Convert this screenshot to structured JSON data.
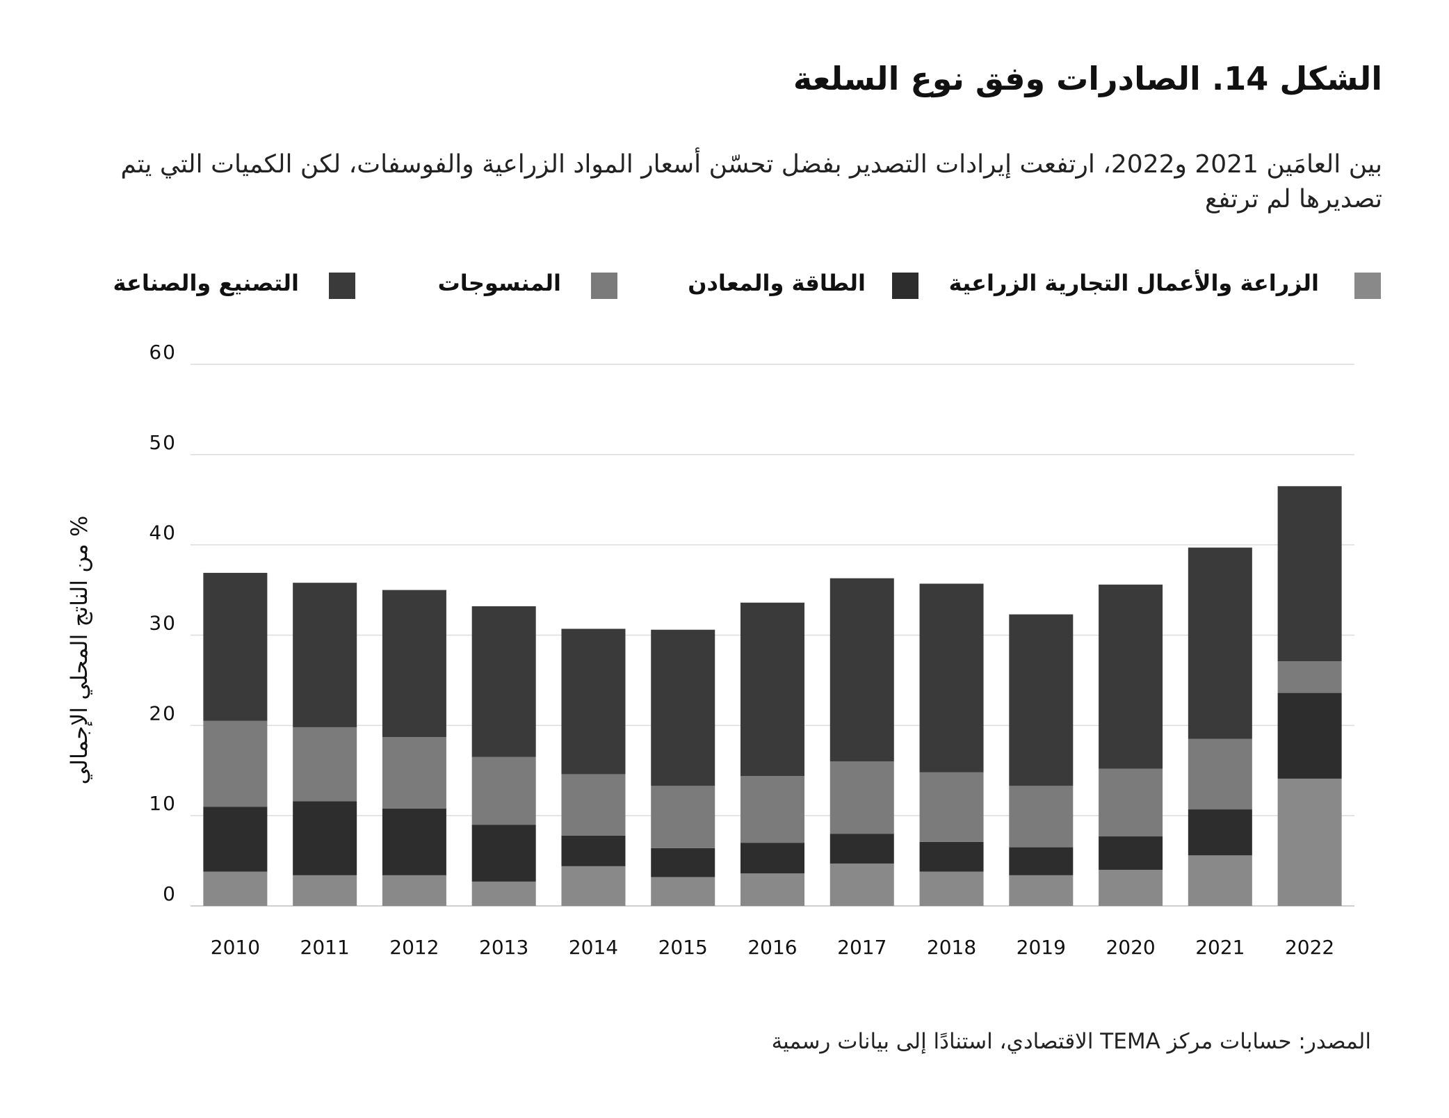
{
  "title": "الشكل 14. الصادرات وفق نوع السلعة",
  "subtitle": "بين العامَين 2021 و2022، ارتفعت إيرادات التصدير بفضل تحسّن أسعار المواد الزراعية والفوسفات، لكن الكميات التي يتم تصديرها لم ترتفع",
  "source": "المصدر: حسابات مركز TEMA الاقتصادي، استنادًا إلى بيانات رسمية",
  "chart_data": {
    "type": "bar",
    "stacked": true,
    "title": "الشكل 14. الصادرات وفق نوع السلعة",
    "xlabel": "",
    "ylabel": "% من الناتج المحلي الإجمالي",
    "ylim": [
      0,
      60
    ],
    "yticks": [
      0,
      10,
      20,
      30,
      40,
      50,
      60
    ],
    "grid": true,
    "legend_position": "top",
    "categories": [
      "2010",
      "2011",
      "2012",
      "2013",
      "2014",
      "2015",
      "2016",
      "2017",
      "2018",
      "2019",
      "2020",
      "2021",
      "2022"
    ],
    "series": [
      {
        "name": "الزراعة والأعمال التجارية الزراعية",
        "color": "#898989",
        "values": [
          3.8,
          3.4,
          3.4,
          2.7,
          4.4,
          3.2,
          3.6,
          4.7,
          3.8,
          3.4,
          4.0,
          5.6,
          14.1
        ]
      },
      {
        "name": "الطاقة والمعادن",
        "color": "#2d2d2d",
        "values": [
          7.2,
          8.2,
          7.4,
          6.3,
          3.4,
          3.2,
          3.4,
          3.3,
          3.3,
          3.1,
          3.7,
          5.1,
          9.5
        ]
      },
      {
        "name": "المنسوجات",
        "color": "#7b7b7b",
        "values": [
          9.5,
          8.2,
          7.9,
          7.5,
          6.8,
          6.9,
          7.4,
          8.0,
          7.7,
          6.8,
          7.5,
          7.8,
          3.5
        ]
      },
      {
        "name": "التصنيع والصناعة",
        "color": "#3a3a3a",
        "values": [
          16.4,
          16.0,
          16.3,
          16.7,
          16.1,
          17.3,
          19.2,
          20.3,
          20.9,
          19.0,
          20.4,
          21.2,
          19.4
        ]
      }
    ]
  }
}
